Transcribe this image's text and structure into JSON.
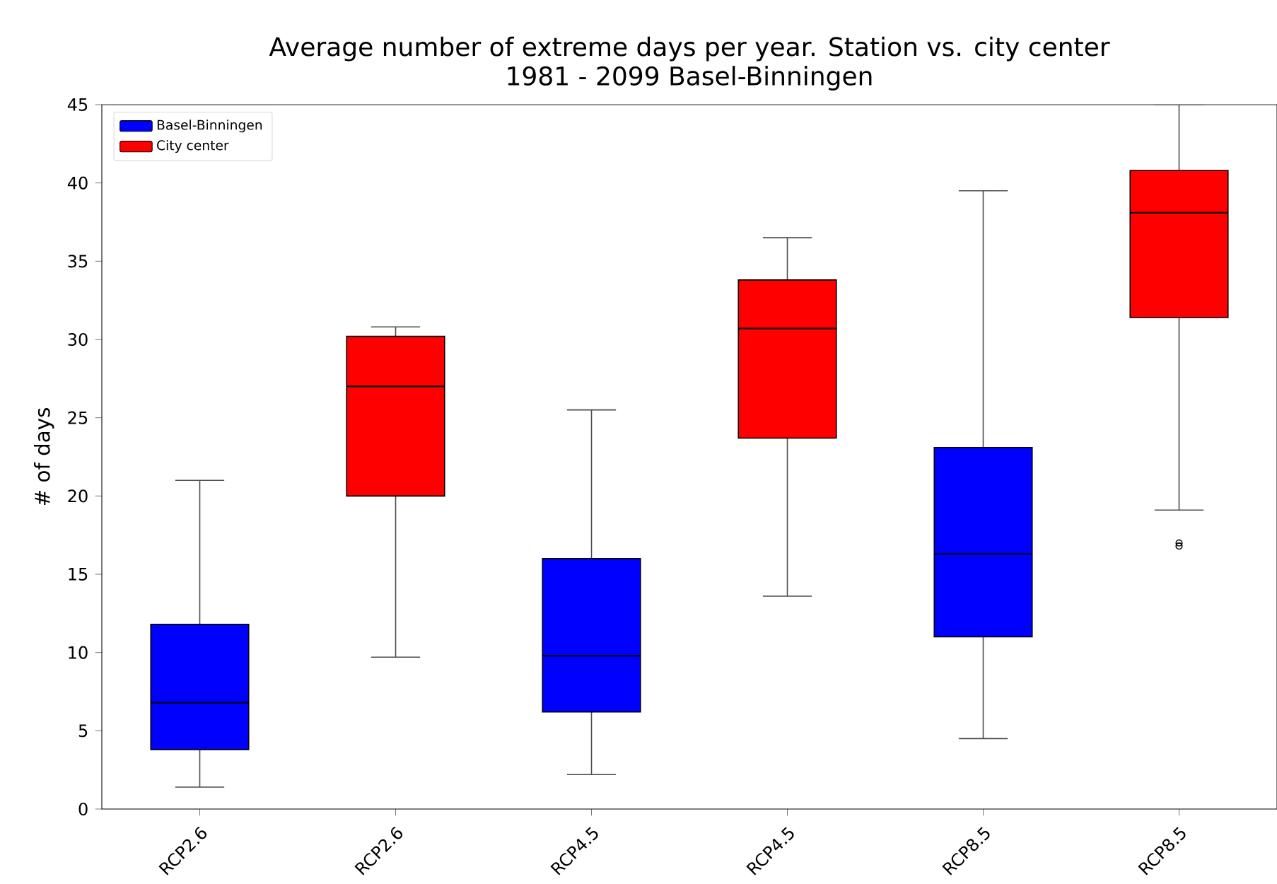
{
  "chart_data": {
    "type": "box",
    "title": "Average number of extreme days per year. Station vs. city center",
    "subtitle": "1981 - 2099 Basel-Binningen",
    "ylabel": "# of days",
    "categories": [
      "RCP2.6",
      "RCP2.6",
      "RCP4.5",
      "RCP4.5",
      "RCP8.5",
      "RCP8.5"
    ],
    "ylim": [
      0,
      45
    ],
    "yticks": [
      0,
      5,
      10,
      15,
      20,
      25,
      30,
      35,
      40,
      45
    ],
    "legend": "top left",
    "marker": "circle",
    "series": [
      {
        "name": "Basel-Binningen",
        "color": "#0000ff",
        "boxes": [
          {
            "low": 1.4,
            "q1": 3.8,
            "median": 6.8,
            "q3": 11.8,
            "high": 21.0
          },
          null,
          {
            "low": 2.2,
            "q1": 6.2,
            "median": 9.8,
            "q3": 16.0,
            "high": 25.5
          },
          null,
          {
            "low": 4.5,
            "q1": 11.0,
            "median": 16.3,
            "q3": 23.1,
            "high": 39.5
          },
          null
        ]
      },
      {
        "name": "City center",
        "color": "#ff0000",
        "boxes": [
          null,
          {
            "low": 9.7,
            "q1": 20.0,
            "median": 27.0,
            "q3": 30.2,
            "high": 30.8
          },
          null,
          {
            "low": 13.6,
            "q1": 23.7,
            "median": 30.7,
            "q3": 33.8,
            "high": 36.5
          },
          null,
          {
            "low": 19.1,
            "q1": 31.4,
            "median": 38.1,
            "q3": 40.8,
            "high": 45,
            "outliers": [
              17.0,
              16.8
            ]
          }
        ]
      }
    ]
  }
}
